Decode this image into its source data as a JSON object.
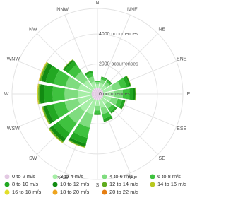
{
  "chart_data": {
    "type": "windrose",
    "categories": [
      "N",
      "NNE",
      "NE",
      "ENE",
      "E",
      "ESE",
      "SE",
      "SSE",
      "S",
      "SSW",
      "SW",
      "WSW",
      "W",
      "WNW",
      "NW",
      "NNW"
    ],
    "ylim": [
      0,
      5700
    ],
    "yticks": [
      {
        "value": 0,
        "label": "0 occurrences"
      },
      {
        "value": 2000,
        "label": "2000 occurrences"
      },
      {
        "value": 4000,
        "label": "4000 occurrences"
      }
    ],
    "grid": true,
    "series": [
      {
        "name": "0 to 2 m/s",
        "color": "#e3c9e3",
        "values": [
          400,
          400,
          400,
          400,
          400,
          400,
          400,
          400,
          400,
          400,
          400,
          400,
          400,
          400,
          400,
          400
        ]
      },
      {
        "name": "2 to 4 m/s",
        "color": "#a6eea6",
        "values": [
          250,
          350,
          350,
          650,
          700,
          550,
          450,
          550,
          400,
          1000,
          1050,
          950,
          900,
          900,
          750,
          450
        ]
      },
      {
        "name": "4 to 6 m/s",
        "color": "#7fdc7f",
        "values": [
          150,
          250,
          250,
          550,
          600,
          450,
          350,
          450,
          300,
          900,
          950,
          900,
          900,
          900,
          700,
          350
        ]
      },
      {
        "name": "6 to 8 m/s",
        "color": "#3fc23f",
        "values": [
          60,
          120,
          120,
          400,
          450,
          300,
          250,
          300,
          200,
          700,
          800,
          750,
          800,
          800,
          550,
          250
        ]
      },
      {
        "name": "8 to 10 m/s",
        "color": "#22a822",
        "values": [
          20,
          50,
          50,
          200,
          250,
          150,
          100,
          150,
          80,
          400,
          450,
          450,
          550,
          550,
          300,
          100
        ]
      },
      {
        "name": "10 to 12 m/s",
        "color": "#128b12",
        "values": [
          10,
          20,
          20,
          80,
          120,
          50,
          40,
          50,
          20,
          200,
          250,
          250,
          300,
          300,
          100,
          40
        ]
      },
      {
        "name": "12 to 14 m/s",
        "color": "#5fab1f",
        "values": [
          0,
          5,
          5,
          20,
          40,
          10,
          10,
          10,
          5,
          60,
          80,
          80,
          100,
          100,
          30,
          10
        ]
      },
      {
        "name": "14 to 16 m/s",
        "color": "#b7c81e",
        "values": [
          0,
          0,
          0,
          10,
          20,
          5,
          0,
          5,
          0,
          20,
          30,
          30,
          40,
          40,
          10,
          0
        ]
      },
      {
        "name": "16 to 18 m/s",
        "color": "#e2de2a",
        "values": [
          0,
          0,
          0,
          5,
          10,
          0,
          0,
          0,
          0,
          5,
          10,
          10,
          20,
          20,
          5,
          0
        ]
      },
      {
        "name": "18 to 20 m/s",
        "color": "#eea41e",
        "values": [
          0,
          0,
          0,
          0,
          5,
          0,
          0,
          0,
          0,
          0,
          5,
          5,
          10,
          10,
          0,
          0
        ]
      },
      {
        "name": "20 to 22 m/s",
        "color": "#e57e12",
        "values": [
          0,
          0,
          0,
          0,
          0,
          0,
          0,
          0,
          0,
          0,
          0,
          0,
          5,
          5,
          0,
          0
        ]
      }
    ]
  }
}
